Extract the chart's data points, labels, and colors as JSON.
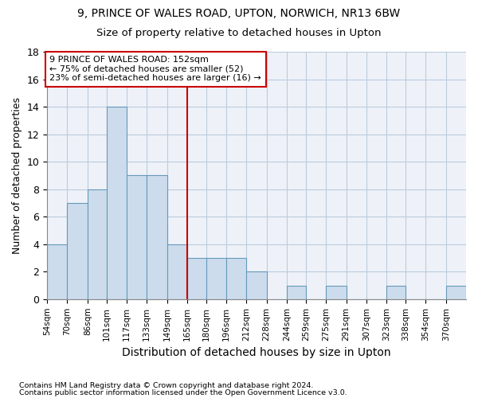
{
  "title1": "9, PRINCE OF WALES ROAD, UPTON, NORWICH, NR13 6BW",
  "title2": "Size of property relative to detached houses in Upton",
  "xlabel": "Distribution of detached houses by size in Upton",
  "ylabel": "Number of detached properties",
  "footnote1": "Contains HM Land Registry data © Crown copyright and database right 2024.",
  "footnote2": "Contains public sector information licensed under the Open Government Licence v3.0.",
  "bin_labels": [
    "54sqm",
    "70sqm",
    "86sqm",
    "101sqm",
    "117sqm",
    "133sqm",
    "149sqm",
    "165sqm",
    "180sqm",
    "196sqm",
    "212sqm",
    "228sqm",
    "244sqm",
    "259sqm",
    "275sqm",
    "291sqm",
    "307sqm",
    "323sqm",
    "338sqm",
    "354sqm",
    "370sqm"
  ],
  "values": [
    4,
    7,
    8,
    14,
    9,
    9,
    4,
    3,
    3,
    3,
    2,
    0,
    1,
    0,
    1,
    0,
    0,
    1,
    0,
    0,
    1
  ],
  "bar_color": "#ccdcec",
  "bar_edge_color": "#6699bb",
  "vline_color": "#cc0000",
  "annotation_lines": [
    "9 PRINCE OF WALES ROAD: 152sqm",
    "← 75% of detached houses are smaller (52)",
    "23% of semi-detached houses are larger (16) →"
  ],
  "annotation_box_color": "#cc0000",
  "ylim": [
    0,
    18
  ],
  "yticks": [
    0,
    2,
    4,
    6,
    8,
    10,
    12,
    14,
    16,
    18
  ],
  "grid_color": "#bbccdd",
  "background_color": "#eef2f8"
}
